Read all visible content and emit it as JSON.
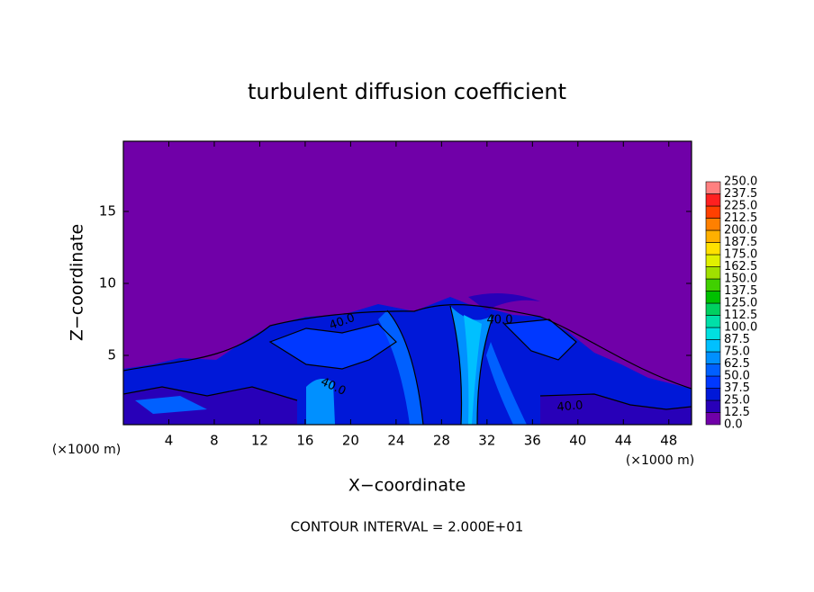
{
  "chart_data": {
    "type": "contour",
    "title": "turbulent diffusion coefficient",
    "x_label": "X−coordinate",
    "y_label": "Z−coordinate",
    "x_unit": "(×1000 m)",
    "x_unit_right": "(×1000 m)",
    "footnote": "CONTOUR INTERVAL = 2.000E+01",
    "xlim": [
      0,
      50
    ],
    "ylim": [
      0,
      20
    ],
    "xticks": [
      4,
      8,
      12,
      16,
      20,
      24,
      28,
      32,
      36,
      40,
      44,
      48
    ],
    "yticks": [
      5,
      10,
      15
    ],
    "contour_labels": [
      {
        "value": 40,
        "label": "40.0"
      },
      {
        "value": 40,
        "label": "40.0"
      },
      {
        "value": 40,
        "label": "40.0"
      },
      {
        "value": 40,
        "label": "40.0"
      }
    ],
    "levels": [
      {
        "value": 0,
        "label": "0.0"
      },
      12.5,
      {
        "value": 25,
        "label": "25.0"
      },
      37.5,
      {
        "value": 50,
        "label": "50.0"
      },
      62.5,
      {
        "value": 75,
        "label": "75.0"
      },
      87.5,
      {
        "value": 100,
        "label": "100.0"
      },
      112.5,
      {
        "value": 125,
        "label": "125.0"
      },
      137.5,
      {
        "value": 150,
        "label": "150.0"
      },
      162.5,
      {
        "value": 175,
        "label": "175.0"
      },
      187.5,
      {
        "value": 200,
        "label": "200.0"
      },
      212.5,
      {
        "value": 225,
        "label": "225.0"
      },
      237.5,
      {
        "value": 250,
        "label": "250.0"
      }
    ],
    "colors": [
      "#7000a8",
      "#2800b8",
      "#0018d8",
      "#0038ff",
      "#0060ff",
      "#0090ff",
      "#00c0ff",
      "#00e0e0",
      "#00e0a8",
      "#00d060",
      "#00c000",
      "#40d000",
      "#a0e000",
      "#e0f000",
      "#ffe000",
      "#ffb000",
      "#ff8000",
      "#ff4000",
      "#ff2020",
      "#ff8080"
    ]
  }
}
